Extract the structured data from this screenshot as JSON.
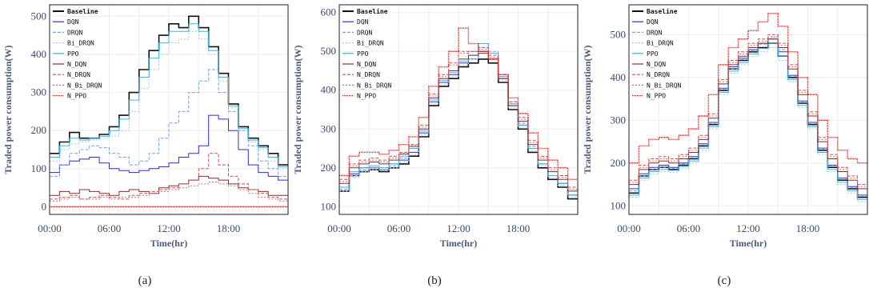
{
  "figure": {
    "captions": [
      "(a)",
      "(b)",
      "(c)"
    ]
  },
  "colors": {
    "Baseline": "#111111",
    "DQN": "#2b2bd9",
    "DRQN": "#6fa0e8",
    "Bi_DRQN": "#9ccaf0",
    "PPO": "#38b6e8",
    "N_DQN": "#8b2a2a",
    "N_DRQN": "#c25555",
    "N_Bi_DRQN": "#d46b6b",
    "N_PPO": "#e01010"
  },
  "chart_data": [
    {
      "type": "line",
      "caption": "(a)",
      "xlabel": "Time(hr)",
      "ylabel": "Traded power consumption(W)",
      "x_ticks": [
        "00:00",
        "06:00",
        "12:00",
        "18:00"
      ],
      "xlim": [
        0,
        24
      ],
      "ylim": [
        -20,
        530
      ],
      "y_ticks": [
        0,
        100,
        200,
        300,
        400,
        500
      ],
      "grid": true,
      "legend_position": "top-left",
      "x": [
        0,
        1,
        2,
        3,
        4,
        5,
        6,
        7,
        8,
        9,
        10,
        11,
        12,
        13,
        14,
        15,
        16,
        17,
        18,
        19,
        20,
        21,
        22,
        23
      ],
      "series": [
        {
          "name": "Baseline",
          "values": [
            140,
            170,
            195,
            180,
            180,
            190,
            210,
            240,
            300,
            360,
            410,
            450,
            480,
            470,
            500,
            470,
            420,
            350,
            270,
            210,
            180,
            160,
            140,
            110
          ]
        },
        {
          "name": "DQN",
          "values": [
            90,
            110,
            120,
            125,
            130,
            115,
            100,
            95,
            90,
            95,
            100,
            105,
            115,
            130,
            140,
            160,
            240,
            230,
            200,
            150,
            110,
            90,
            80,
            70
          ]
        },
        {
          "name": "DRQN",
          "values": [
            80,
            110,
            140,
            150,
            160,
            155,
            140,
            130,
            110,
            120,
            140,
            180,
            220,
            250,
            300,
            330,
            360,
            300,
            250,
            200,
            160,
            120,
            100,
            80
          ]
        },
        {
          "name": "Bi_DRQN",
          "values": [
            120,
            150,
            165,
            170,
            175,
            180,
            185,
            200,
            250,
            310,
            360,
            400,
            430,
            440,
            460,
            440,
            400,
            330,
            260,
            200,
            170,
            150,
            120,
            100
          ]
        },
        {
          "name": "PPO",
          "values": [
            130,
            160,
            180,
            175,
            180,
            185,
            200,
            230,
            280,
            340,
            390,
            430,
            460,
            460,
            480,
            460,
            410,
            340,
            265,
            205,
            175,
            155,
            130,
            105
          ]
        },
        {
          "name": "N_DQN",
          "values": [
            30,
            40,
            35,
            45,
            40,
            35,
            30,
            40,
            45,
            40,
            35,
            50,
            55,
            60,
            70,
            80,
            75,
            70,
            60,
            50,
            45,
            40,
            30,
            30
          ]
        },
        {
          "name": "N_DRQN",
          "values": [
            20,
            25,
            30,
            20,
            25,
            30,
            25,
            20,
            30,
            35,
            40,
            45,
            50,
            60,
            70,
            100,
            140,
            110,
            80,
            60,
            45,
            35,
            25,
            20
          ]
        },
        {
          "name": "N_Bi_DRQN",
          "values": [
            15,
            20,
            25,
            20,
            20,
            25,
            20,
            25,
            25,
            30,
            35,
            40,
            45,
            50,
            55,
            60,
            65,
            60,
            55,
            45,
            35,
            25,
            20,
            15
          ]
        },
        {
          "name": "N_PPO",
          "values": [
            0,
            0,
            0,
            0,
            0,
            0,
            0,
            0,
            0,
            0,
            0,
            0,
            0,
            0,
            0,
            0,
            0,
            0,
            0,
            0,
            0,
            0,
            0,
            0
          ]
        }
      ]
    },
    {
      "type": "line",
      "caption": "(b)",
      "xlabel": "Time(hr)",
      "ylabel": "Traded power consumption(W)",
      "x_ticks": [
        "00:00",
        "06:00",
        "12:00",
        "18:00"
      ],
      "xlim": [
        0,
        24
      ],
      "ylim": [
        80,
        620
      ],
      "y_ticks": [
        100,
        200,
        300,
        400,
        500,
        600
      ],
      "grid": true,
      "legend_position": "top-left",
      "x": [
        0,
        1,
        2,
        3,
        4,
        5,
        6,
        7,
        8,
        9,
        10,
        11,
        12,
        13,
        14,
        15,
        16,
        17,
        18,
        19,
        20,
        21,
        22,
        23
      ],
      "series": [
        {
          "name": "Baseline",
          "values": [
            140,
            180,
            190,
            195,
            190,
            200,
            210,
            230,
            280,
            360,
            410,
            430,
            460,
            470,
            480,
            470,
            420,
            350,
            300,
            240,
            200,
            170,
            150,
            120
          ]
        },
        {
          "name": "DQN",
          "values": [
            150,
            185,
            200,
            200,
            195,
            210,
            220,
            240,
            290,
            370,
            420,
            440,
            470,
            480,
            500,
            480,
            430,
            360,
            310,
            250,
            210,
            180,
            160,
            130
          ]
        },
        {
          "name": "DRQN",
          "values": [
            145,
            180,
            195,
            200,
            200,
            205,
            225,
            250,
            300,
            380,
            430,
            450,
            480,
            500,
            520,
            500,
            440,
            370,
            315,
            255,
            210,
            180,
            160,
            130
          ]
        },
        {
          "name": "Bi_DRQN",
          "values": [
            140,
            175,
            190,
            195,
            195,
            200,
            215,
            235,
            285,
            365,
            415,
            435,
            465,
            480,
            510,
            485,
            425,
            355,
            305,
            245,
            205,
            175,
            155,
            125
          ]
        },
        {
          "name": "PPO",
          "values": [
            150,
            190,
            200,
            205,
            200,
            210,
            230,
            250,
            295,
            375,
            425,
            445,
            475,
            490,
            520,
            495,
            435,
            365,
            310,
            250,
            210,
            180,
            160,
            130
          ]
        },
        {
          "name": "N_DQN",
          "values": [
            160,
            200,
            210,
            215,
            210,
            220,
            235,
            255,
            300,
            380,
            430,
            450,
            480,
            490,
            495,
            480,
            430,
            360,
            320,
            260,
            220,
            190,
            170,
            140
          ]
        },
        {
          "name": "N_DRQN",
          "values": [
            170,
            210,
            220,
            225,
            220,
            230,
            240,
            260,
            310,
            390,
            440,
            470,
            500,
            500,
            510,
            490,
            440,
            370,
            330,
            270,
            230,
            200,
            180,
            150
          ]
        },
        {
          "name": "N_Bi_DRQN",
          "values": [
            165,
            205,
            215,
            220,
            215,
            225,
            238,
            258,
            305,
            385,
            435,
            465,
            495,
            500,
            505,
            485,
            435,
            365,
            325,
            265,
            225,
            195,
            175,
            145
          ]
        },
        {
          "name": "N_PPO",
          "values": [
            180,
            230,
            240,
            240,
            235,
            245,
            260,
            280,
            330,
            410,
            460,
            500,
            560,
            520,
            500,
            480,
            440,
            380,
            340,
            290,
            250,
            220,
            200,
            170
          ]
        }
      ]
    },
    {
      "type": "line",
      "caption": "(c)",
      "xlabel": "Time(hr)",
      "ylabel": "Traded power consumption(W)",
      "x_ticks": [
        "00:00",
        "06:00",
        "12:00",
        "18:00"
      ],
      "xlim": [
        0,
        24
      ],
      "ylim": [
        80,
        570
      ],
      "y_ticks": [
        100,
        200,
        300,
        400,
        500
      ],
      "grid": true,
      "legend_position": "top-left",
      "x": [
        0,
        1,
        2,
        3,
        4,
        5,
        6,
        7,
        8,
        9,
        10,
        11,
        12,
        13,
        14,
        15,
        16,
        17,
        18,
        19,
        20,
        21,
        22,
        23
      ],
      "series": [
        {
          "name": "Baseline",
          "values": [
            130,
            170,
            185,
            190,
            185,
            195,
            210,
            240,
            290,
            370,
            420,
            440,
            460,
            470,
            480,
            450,
            400,
            340,
            290,
            230,
            190,
            160,
            140,
            120
          ]
        },
        {
          "name": "DQN",
          "values": [
            140,
            175,
            190,
            195,
            190,
            200,
            215,
            245,
            295,
            375,
            425,
            445,
            465,
            480,
            490,
            460,
            405,
            345,
            295,
            235,
            195,
            165,
            145,
            125
          ]
        },
        {
          "name": "DRQN",
          "values": [
            135,
            170,
            185,
            190,
            188,
            198,
            212,
            242,
            292,
            372,
            420,
            442,
            462,
            478,
            495,
            465,
            402,
            342,
            292,
            232,
            192,
            162,
            142,
            122
          ]
        },
        {
          "name": "Bi_DRQN",
          "values": [
            120,
            160,
            175,
            180,
            178,
            188,
            200,
            230,
            280,
            360,
            410,
            430,
            450,
            460,
            470,
            440,
            390,
            330,
            280,
            220,
            180,
            150,
            130,
            110
          ]
        },
        {
          "name": "PPO",
          "values": [
            125,
            165,
            180,
            185,
            183,
            192,
            205,
            235,
            285,
            365,
            415,
            435,
            455,
            468,
            480,
            450,
            395,
            335,
            285,
            225,
            185,
            155,
            135,
            115
          ]
        },
        {
          "name": "N_DQN",
          "values": [
            150,
            185,
            200,
            205,
            200,
            210,
            225,
            255,
            305,
            385,
            430,
            450,
            470,
            480,
            490,
            470,
            420,
            360,
            310,
            250,
            210,
            180,
            160,
            140
          ]
        },
        {
          "name": "N_DRQN",
          "values": [
            160,
            195,
            210,
            215,
            210,
            220,
            235,
            265,
            315,
            395,
            440,
            460,
            480,
            490,
            500,
            480,
            430,
            370,
            320,
            260,
            220,
            190,
            170,
            150
          ]
        },
        {
          "name": "N_Bi_DRQN",
          "values": [
            155,
            190,
            205,
            210,
            205,
            215,
            230,
            260,
            310,
            390,
            435,
            455,
            475,
            485,
            495,
            475,
            425,
            365,
            315,
            255,
            215,
            185,
            165,
            145
          ]
        },
        {
          "name": "N_PPO",
          "values": [
            200,
            240,
            255,
            260,
            255,
            265,
            280,
            310,
            360,
            430,
            470,
            490,
            510,
            530,
            550,
            520,
            460,
            400,
            360,
            300,
            260,
            230,
            210,
            200
          ]
        }
      ]
    }
  ]
}
